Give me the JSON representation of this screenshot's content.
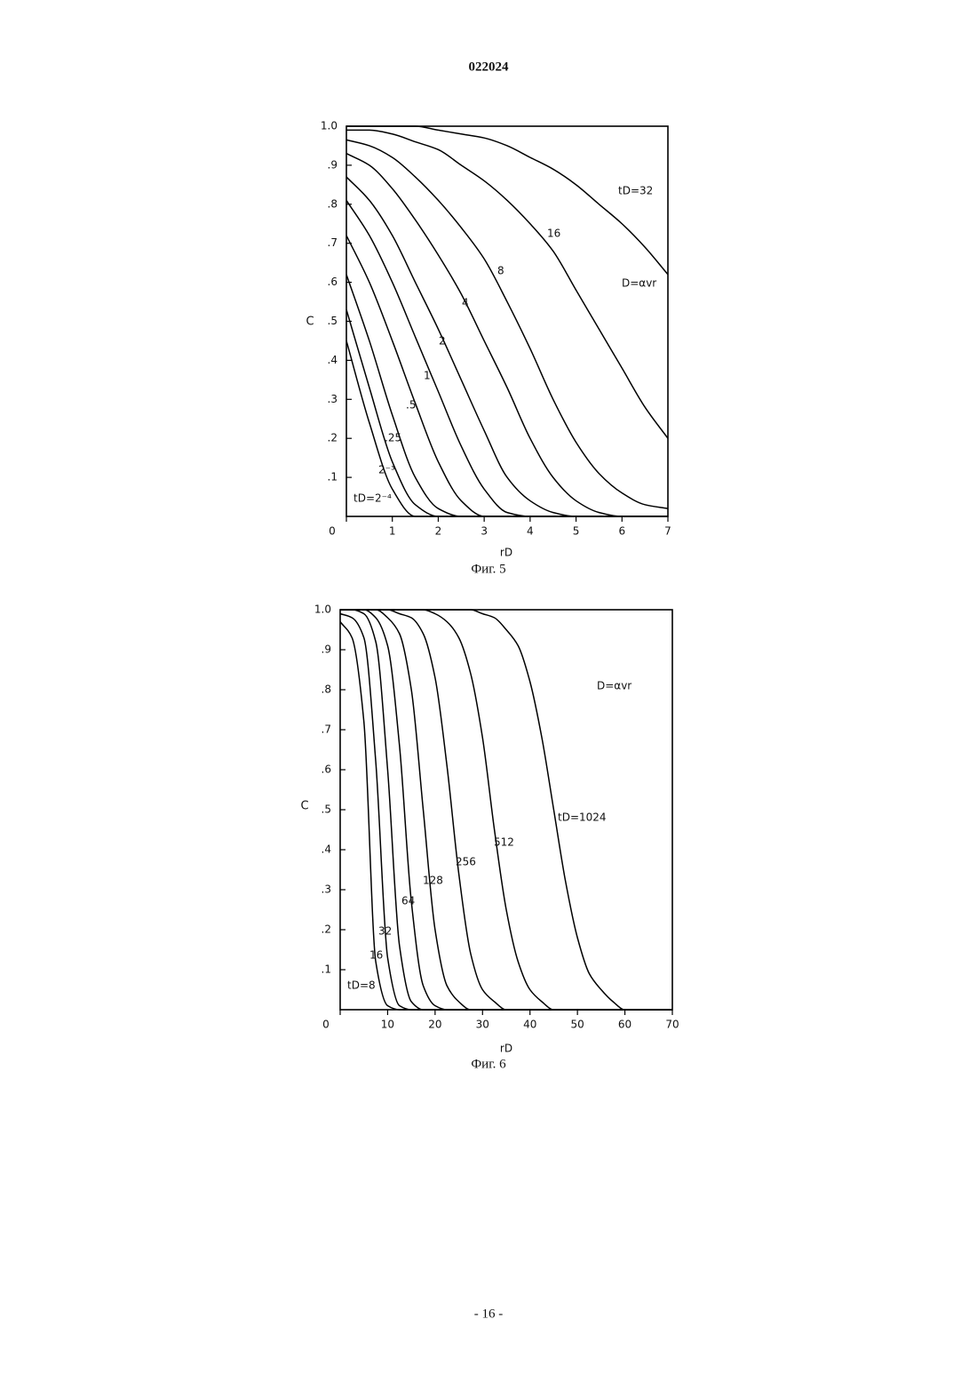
{
  "header": "022024",
  "footer": "- 16 -",
  "chart_data": [
    {
      "type": "line",
      "caption": "Фиг. 5",
      "xlabel": "rD",
      "ylabel": "C",
      "annotations": [
        "D=αvr"
      ],
      "xlim": [
        0,
        7
      ],
      "ylim": [
        0,
        1
      ],
      "xticks": [
        0,
        1,
        2,
        3,
        4,
        5,
        6,
        7
      ],
      "yticks": [
        {
          "value": 0.1,
          "label": ".1"
        },
        {
          "value": 0.2,
          "label": ".2"
        },
        {
          "value": 0.3,
          "label": ".3"
        },
        {
          "value": 0.4,
          "label": ".4"
        },
        {
          "value": 0.5,
          "label": ".5"
        },
        {
          "value": 0.6,
          "label": ".6"
        },
        {
          "value": 0.7,
          "label": ".7"
        },
        {
          "value": 0.8,
          "label": ".8"
        },
        {
          "value": 0.9,
          "label": ".9"
        },
        {
          "value": 1,
          "label": "1.0"
        }
      ],
      "x": [
        0,
        0.5,
        1,
        1.5,
        2,
        2.5,
        3,
        3.5,
        4,
        4.5,
        5,
        5.5,
        6,
        6.5,
        7
      ],
      "series": [
        {
          "name": "tD=32",
          "color": "#000000",
          "values": [
            1.0,
            1.0,
            1.0,
            1.0,
            0.99,
            0.98,
            0.97,
            0.95,
            0.92,
            0.89,
            0.85,
            0.8,
            0.75,
            0.69,
            0.62
          ]
        },
        {
          "name": "16",
          "color": "#000000",
          "values": [
            0.99,
            0.99,
            0.98,
            0.96,
            0.94,
            0.9,
            0.86,
            0.81,
            0.75,
            0.68,
            0.58,
            0.48,
            0.38,
            0.28,
            0.2
          ]
        },
        {
          "name": "8",
          "color": "#000000",
          "values": [
            0.965,
            0.95,
            0.92,
            0.87,
            0.81,
            0.74,
            0.66,
            0.55,
            0.43,
            0.3,
            0.19,
            0.11,
            0.06,
            0.03,
            0.02
          ]
        },
        {
          "name": "4",
          "color": "#000000",
          "values": [
            0.93,
            0.9,
            0.84,
            0.76,
            0.67,
            0.57,
            0.45,
            0.33,
            0.2,
            0.1,
            0.04,
            0.01,
            0,
            0,
            0
          ]
        },
        {
          "name": "2",
          "color": "#000000",
          "values": [
            0.87,
            0.81,
            0.72,
            0.6,
            0.48,
            0.35,
            0.22,
            0.1,
            0.04,
            0.01,
            0,
            0,
            0,
            0,
            0
          ]
        },
        {
          "name": "1",
          "color": "#000000",
          "values": [
            0.81,
            0.72,
            0.6,
            0.46,
            0.32,
            0.18,
            0.07,
            0.01,
            0,
            0,
            0,
            0,
            0,
            0,
            0
          ]
        },
        {
          "name": ".5",
          "color": "#000000",
          "values": [
            0.72,
            0.6,
            0.45,
            0.29,
            0.14,
            0.04,
            0,
            0,
            0,
            0,
            0,
            0,
            0,
            0,
            0
          ]
        },
        {
          "name": ".25",
          "color": "#000000",
          "values": [
            0.62,
            0.45,
            0.26,
            0.1,
            0.02,
            0,
            0,
            0,
            0,
            0,
            0,
            0,
            0,
            0,
            0
          ]
        },
        {
          "name": "2⁻³",
          "color": "#000000",
          "values": [
            0.53,
            0.33,
            0.14,
            0.03,
            0,
            0,
            0,
            0,
            0,
            0,
            0,
            0,
            0,
            0,
            0
          ]
        },
        {
          "name": "tD=2⁻⁴",
          "color": "#000000",
          "values": [
            0.45,
            0.24,
            0.07,
            0,
            0,
            0,
            0,
            0,
            0,
            0,
            0,
            0,
            0,
            0,
            0
          ]
        }
      ]
    },
    {
      "type": "line",
      "caption": "Фиг. 6",
      "xlabel": "rD",
      "ylabel": "C",
      "annotations": [
        "D=αvr"
      ],
      "xlim": [
        0,
        70
      ],
      "ylim": [
        0,
        1
      ],
      "xticks": [
        0,
        10,
        20,
        30,
        40,
        50,
        60,
        70
      ],
      "yticks": [
        {
          "value": 0.1,
          "label": ".1"
        },
        {
          "value": 0.2,
          "label": ".2"
        },
        {
          "value": 0.3,
          "label": ".3"
        },
        {
          "value": 0.4,
          "label": ".4"
        },
        {
          "value": 0.5,
          "label": ".5"
        },
        {
          "value": 0.6,
          "label": ".6"
        },
        {
          "value": 0.7,
          "label": ".7"
        },
        {
          "value": 0.8,
          "label": ".8"
        },
        {
          "value": 0.9,
          "label": ".9"
        },
        {
          "value": 1,
          "label": "1.0"
        }
      ],
      "x": [
        0,
        2.5,
        5,
        7.5,
        10,
        12.5,
        15,
        17.5,
        20,
        22.5,
        25,
        27.5,
        30,
        32.5,
        35,
        37.5,
        40,
        42.5,
        45,
        47.5,
        50,
        52.5,
        55,
        57.5,
        60,
        62.5,
        65,
        67.5,
        70
      ],
      "series": [
        {
          "name": "tD=8",
          "color": "#000000",
          "values": [
            0.97,
            0.93,
            0.72,
            0.12,
            0.01,
            0,
            0,
            0,
            0,
            0,
            0,
            0,
            0,
            0,
            0,
            0,
            0,
            0,
            0,
            0,
            0,
            0,
            0,
            0,
            0,
            0,
            0,
            0,
            0
          ]
        },
        {
          "name": "16",
          "color": "#000000",
          "values": [
            0.99,
            0.98,
            0.93,
            0.62,
            0.13,
            0.01,
            0,
            0,
            0,
            0,
            0,
            0,
            0,
            0,
            0,
            0,
            0,
            0,
            0,
            0,
            0,
            0,
            0,
            0,
            0,
            0,
            0,
            0,
            0
          ]
        },
        {
          "name": "32",
          "color": "#000000",
          "values": [
            1,
            1,
            0.99,
            0.92,
            0.6,
            0.16,
            0.02,
            0,
            0,
            0,
            0,
            0,
            0,
            0,
            0,
            0,
            0,
            0,
            0,
            0,
            0,
            0,
            0,
            0,
            0,
            0,
            0,
            0,
            0
          ]
        },
        {
          "name": "64",
          "color": "#000000",
          "values": [
            1,
            1,
            1,
            0.98,
            0.91,
            0.66,
            0.27,
            0.06,
            0.01,
            0,
            0,
            0,
            0,
            0,
            0,
            0,
            0,
            0,
            0,
            0,
            0,
            0,
            0,
            0,
            0,
            0,
            0,
            0,
            0
          ]
        },
        {
          "name": "128",
          "color": "#000000",
          "values": [
            1,
            1,
            1,
            1,
            0.98,
            0.94,
            0.8,
            0.5,
            0.2,
            0.06,
            0.02,
            0,
            0,
            0,
            0,
            0,
            0,
            0,
            0,
            0,
            0,
            0,
            0,
            0,
            0,
            0,
            0,
            0,
            0
          ]
        },
        {
          "name": "256",
          "color": "#000000",
          "values": [
            1,
            1,
            1,
            1,
            1,
            0.99,
            0.98,
            0.94,
            0.83,
            0.61,
            0.34,
            0.14,
            0.05,
            0.02,
            0,
            0,
            0,
            0,
            0,
            0,
            0,
            0,
            0,
            0,
            0,
            0,
            0,
            0,
            0
          ]
        },
        {
          "name": "512",
          "color": "#000000",
          "values": [
            1,
            1,
            1,
            1,
            1,
            1,
            1,
            1,
            0.99,
            0.97,
            0.93,
            0.84,
            0.68,
            0.45,
            0.25,
            0.12,
            0.05,
            0.02,
            0,
            0,
            0,
            0,
            0,
            0,
            0,
            0,
            0,
            0,
            0
          ]
        },
        {
          "name": "tD=1024",
          "color": "#000000",
          "values": [
            1,
            1,
            1,
            1,
            1,
            1,
            1,
            1,
            1,
            1,
            1,
            1,
            0.99,
            0.98,
            0.95,
            0.91,
            0.82,
            0.68,
            0.5,
            0.32,
            0.18,
            0.09,
            0.05,
            0.02,
            0,
            0,
            0,
            0,
            0
          ]
        }
      ]
    }
  ]
}
